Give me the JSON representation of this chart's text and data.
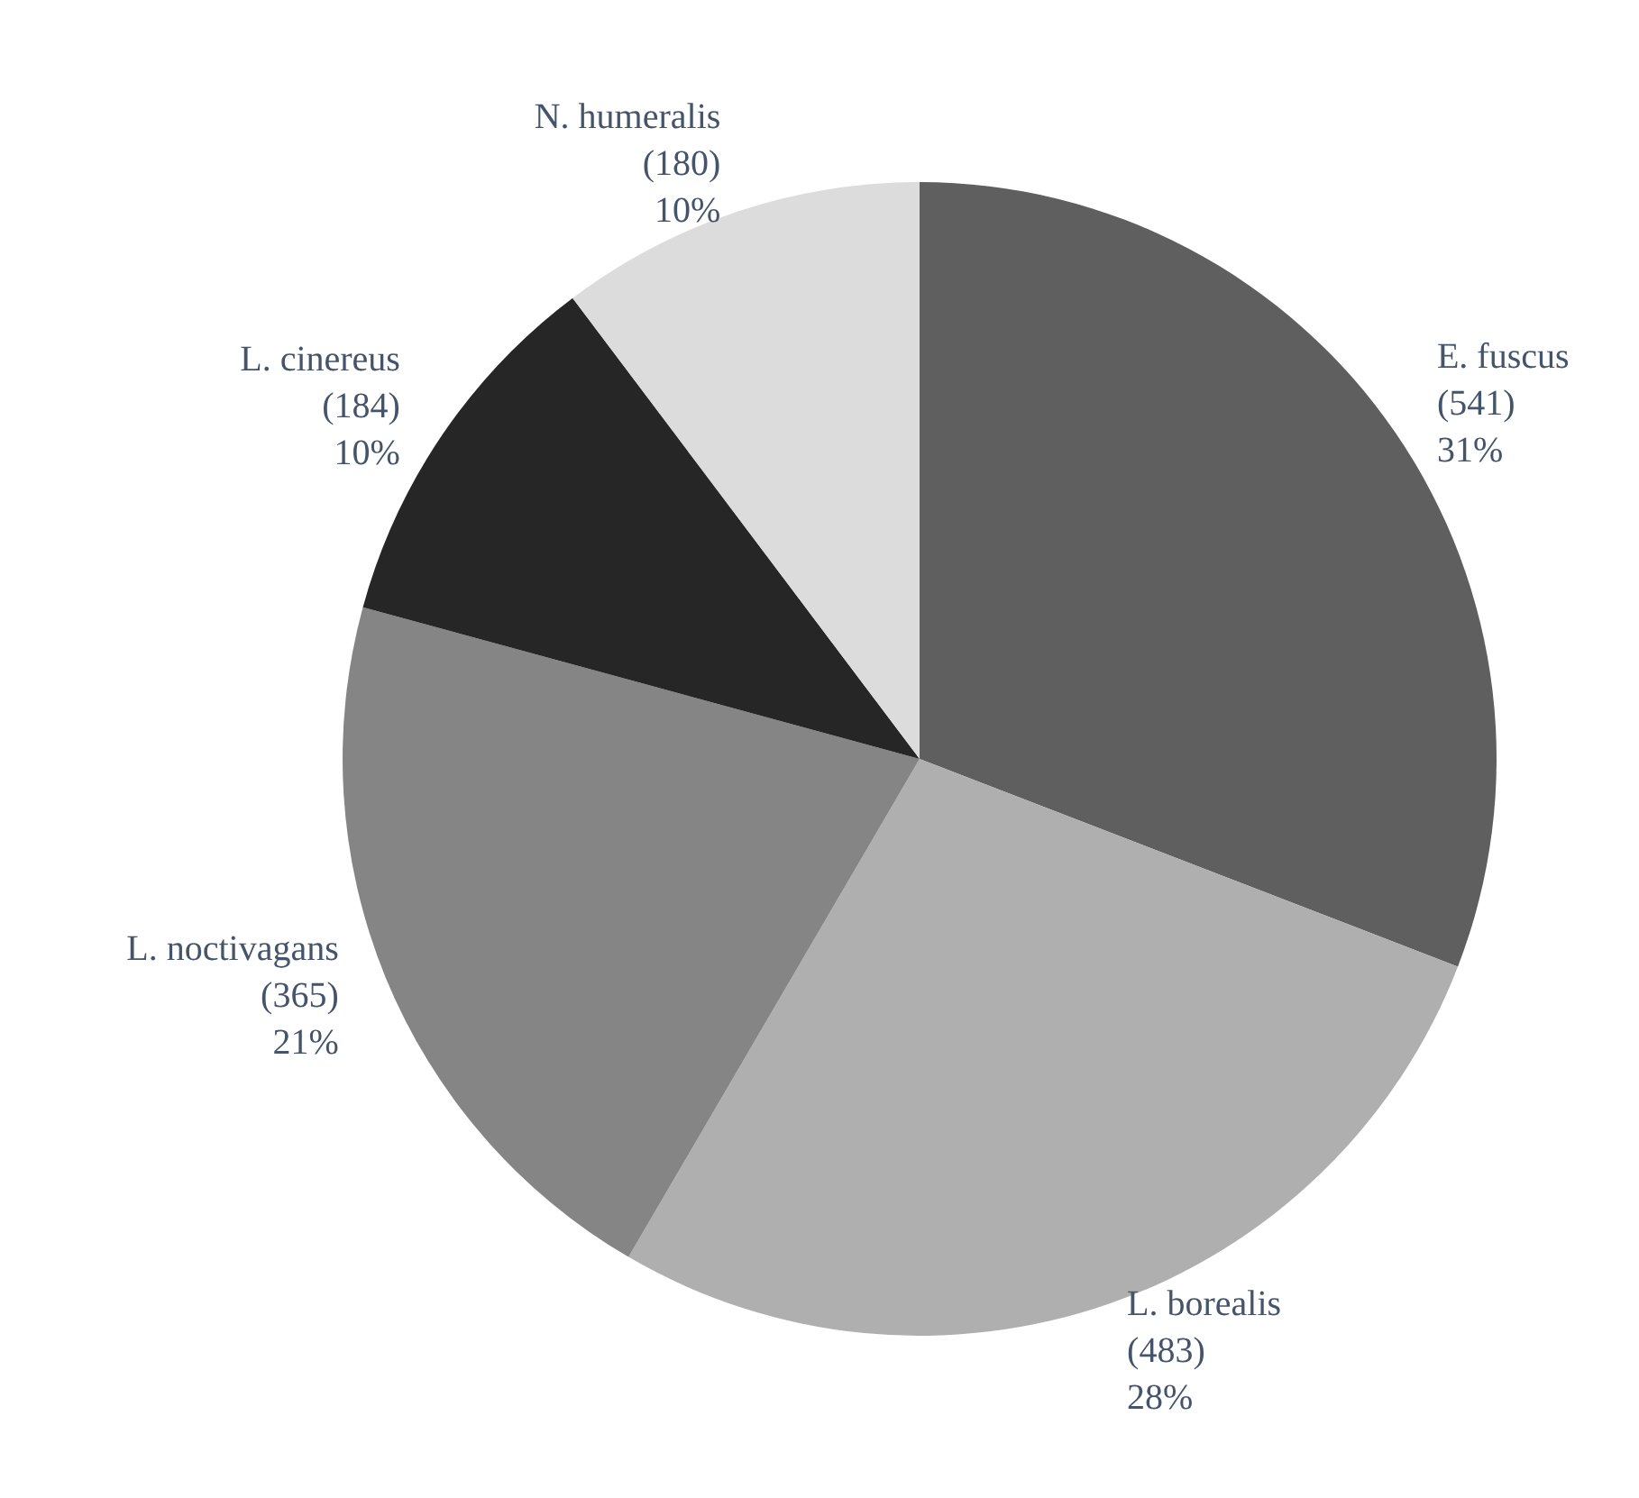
{
  "chart_data": {
    "type": "pie",
    "categories": [
      "E. fuscus",
      "L. borealis",
      "L. noctivagans",
      "L. cinereus",
      "N. humeralis"
    ],
    "values": [
      541,
      483,
      365,
      184,
      180
    ],
    "colors": [
      "#5f5f5f",
      "#afafaf",
      "#858585",
      "#262626",
      "#dcdcdc"
    ],
    "value_labels": [
      "(541)\n31%",
      "(483)\n28%",
      "(365)\n21%",
      "(184)\n10%",
      "(180)\n10%"
    ]
  }
}
